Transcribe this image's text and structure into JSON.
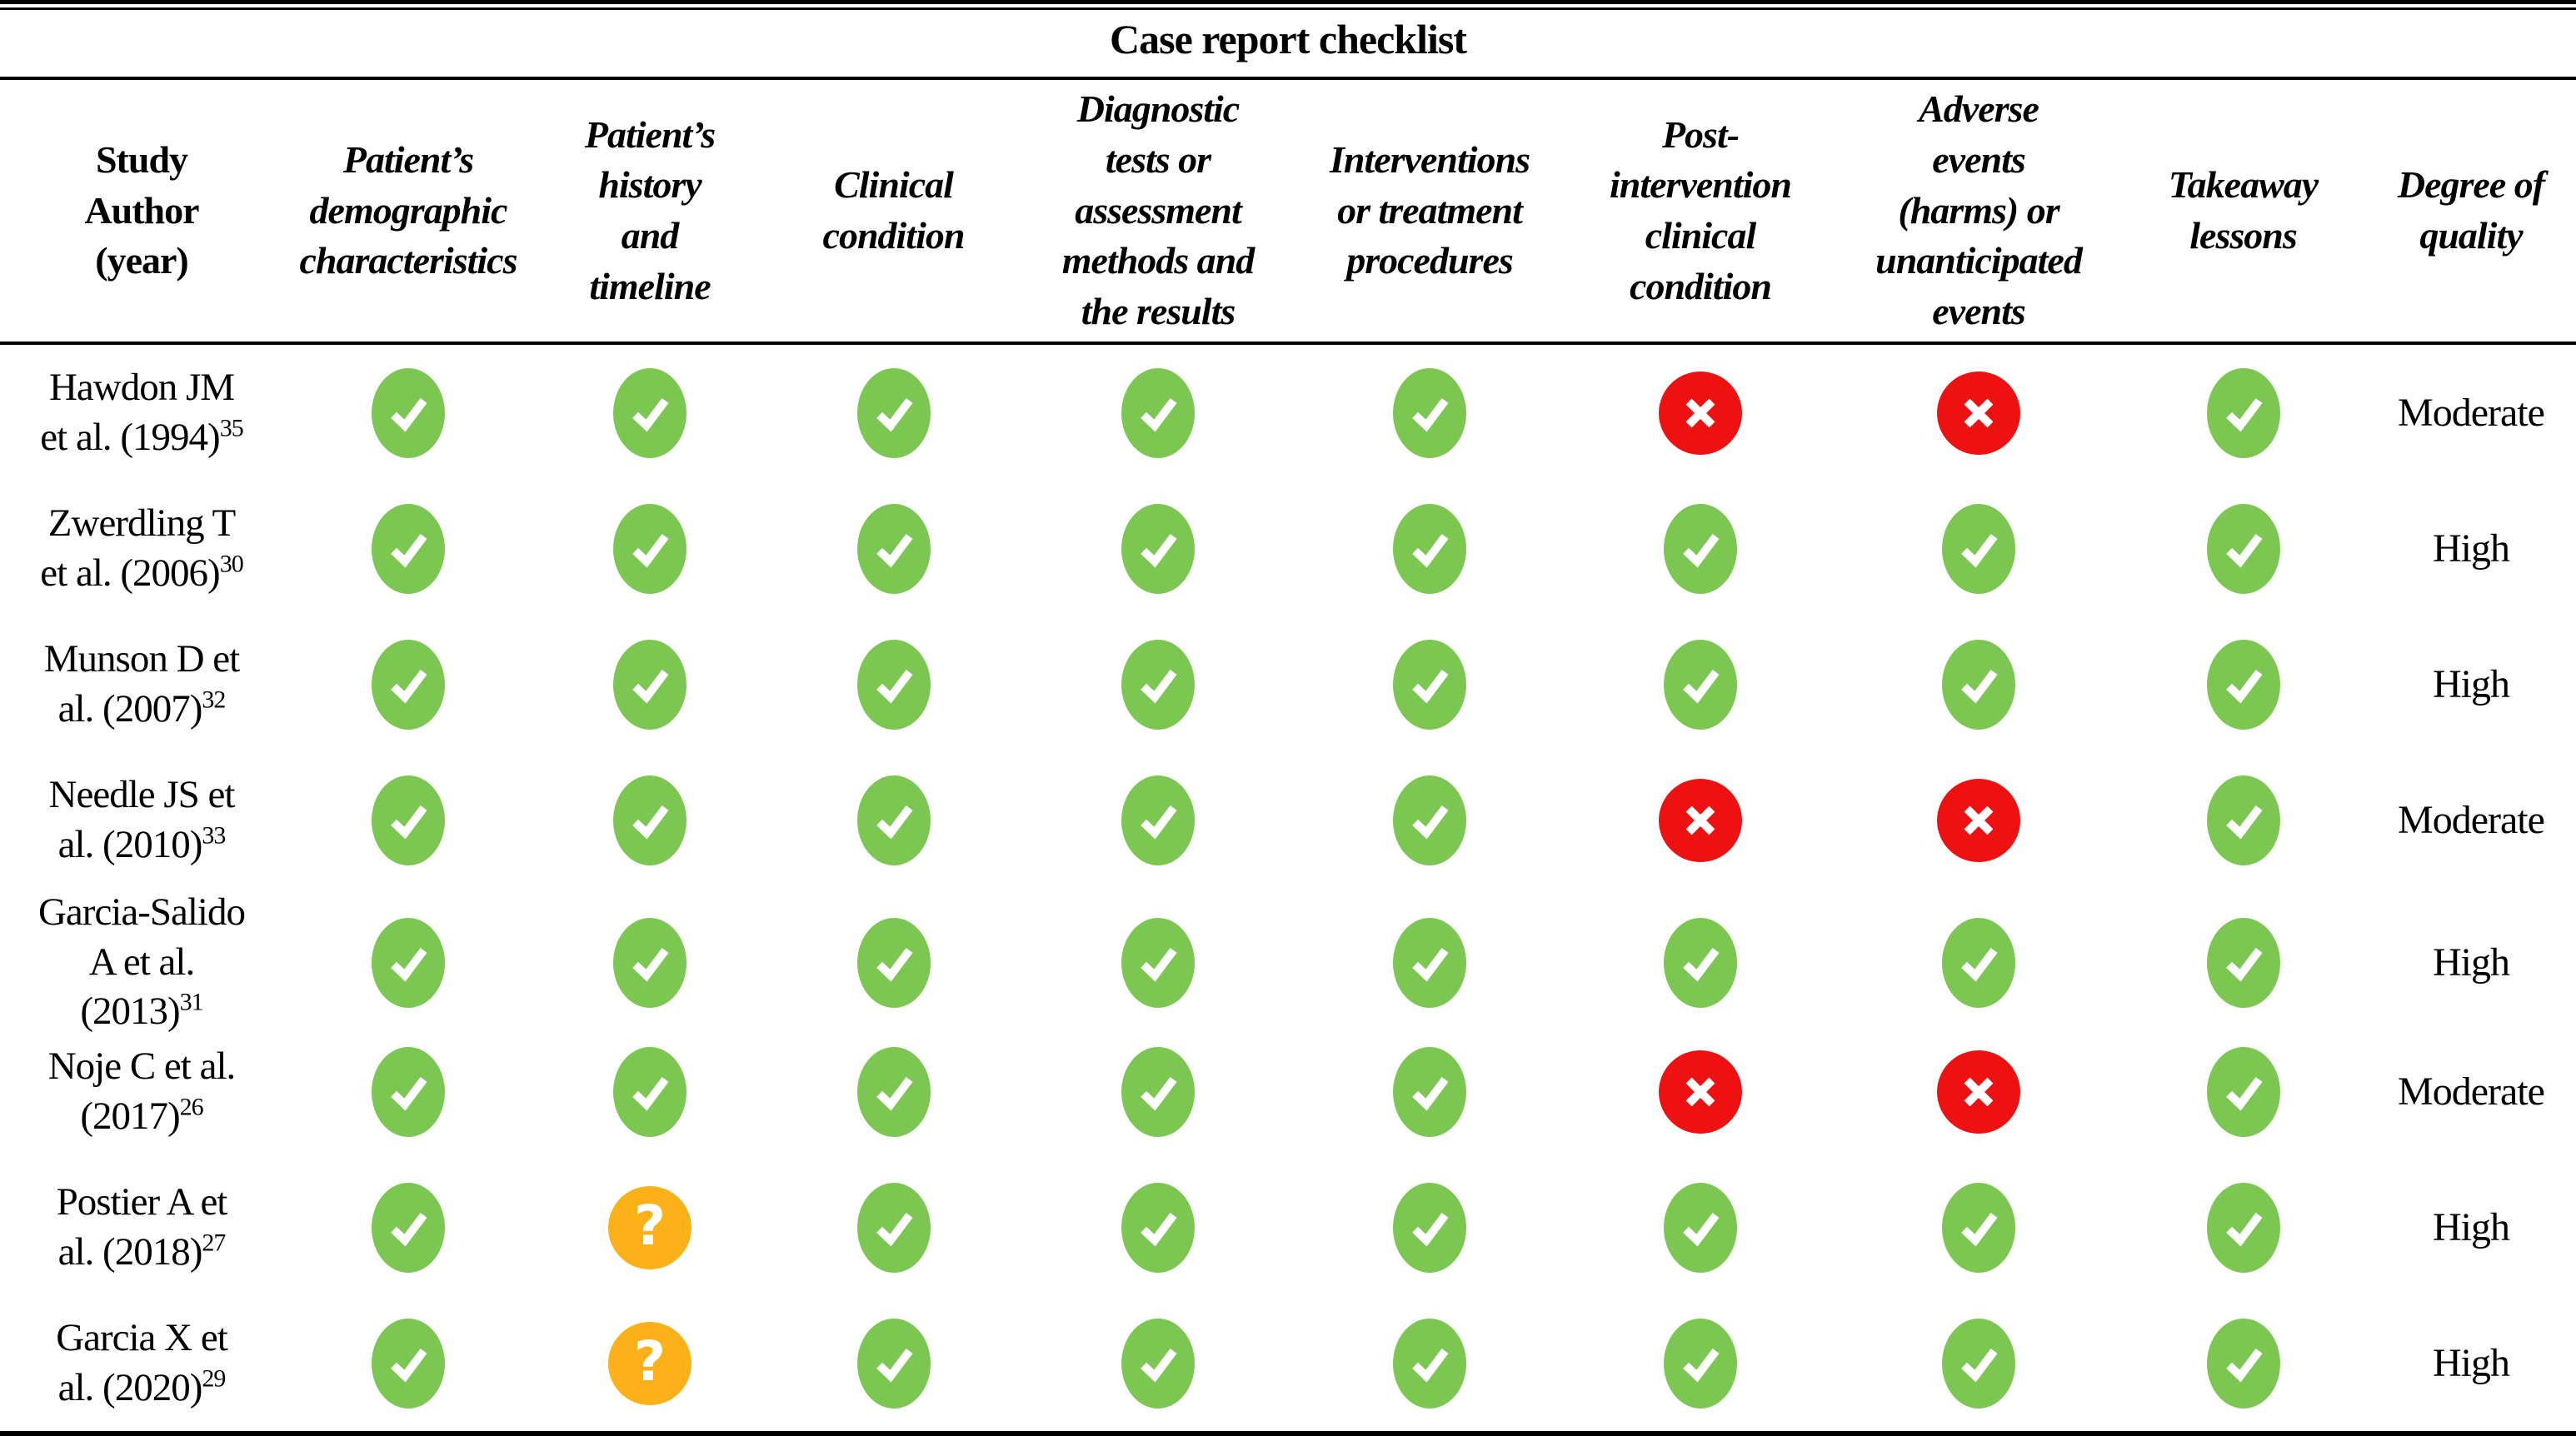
{
  "title": "Case report checklist",
  "colors": {
    "check_bg": "#7CC752",
    "cross_bg": "#ED1111",
    "question_bg": "#FBB117",
    "glyph": "#FFFFFF",
    "text": "#000000",
    "rule": "#000000"
  },
  "icons": {
    "check": "checkmark-icon",
    "cross": "x-mark-icon",
    "question": "question-mark-icon"
  },
  "columns": [
    {
      "id": "study-author",
      "label": "Study Author (year)",
      "lines": [
        "Study",
        "Author",
        "(year)"
      ],
      "italic": false
    },
    {
      "id": "demographic",
      "label": "Patient’s demographic characteristics",
      "lines": [
        "Patient’s",
        "demographic",
        "characteristics"
      ],
      "italic": true
    },
    {
      "id": "history-timeline",
      "label": "Patient’s history and timeline",
      "lines": [
        "Patient’s",
        "history",
        "and",
        "timeline"
      ],
      "italic": true
    },
    {
      "id": "clinical-condition",
      "label": "Clinical condition",
      "lines": [
        "Clinical",
        "condition"
      ],
      "italic": true
    },
    {
      "id": "diagnostic-tests",
      "label": "Diagnostic tests or assessment methods and the results",
      "lines": [
        "Diagnostic",
        "tests or",
        "assessment",
        "methods and",
        "the results"
      ],
      "italic": true
    },
    {
      "id": "interventions",
      "label": "Interventions or treatment procedures",
      "lines": [
        "Interventions",
        "or treatment",
        "procedures"
      ],
      "italic": true
    },
    {
      "id": "post-intervention",
      "label": "Post-intervention clinical condition",
      "lines": [
        "Post-",
        "intervention",
        "clinical",
        "condition"
      ],
      "italic": true
    },
    {
      "id": "adverse-events",
      "label": "Adverse events (harms) or unanticipated events",
      "lines": [
        "Adverse",
        "events",
        "(harms) or",
        "unanticipated",
        "events"
      ],
      "italic": true
    },
    {
      "id": "takeaway-lessons",
      "label": "Takeaway lessons",
      "lines": [
        "Takeaway",
        "lessons"
      ],
      "italic": true
    },
    {
      "id": "degree-of-quality",
      "label": "Degree of quality",
      "lines": [
        "Degree of",
        "quality"
      ],
      "italic": true
    }
  ],
  "rows": [
    {
      "author_lines": [
        "Hawdon JM",
        "et al. (1994)"
      ],
      "ref": "35",
      "marks": [
        "check",
        "check",
        "check",
        "check",
        "check",
        "cross",
        "cross",
        "check"
      ],
      "quality": "Moderate"
    },
    {
      "author_lines": [
        "Zwerdling T",
        "et al. (2006)"
      ],
      "ref": "30",
      "marks": [
        "check",
        "check",
        "check",
        "check",
        "check",
        "check",
        "check",
        "check"
      ],
      "quality": "High"
    },
    {
      "author_lines": [
        "Munson D et",
        "al. (2007)"
      ],
      "ref": "32",
      "marks": [
        "check",
        "check",
        "check",
        "check",
        "check",
        "check",
        "check",
        "check"
      ],
      "quality": "High"
    },
    {
      "author_lines": [
        "Needle JS et",
        "al. (2010)"
      ],
      "ref": "33",
      "marks": [
        "check",
        "check",
        "check",
        "check",
        "check",
        "cross",
        "cross",
        "check"
      ],
      "quality": "Moderate"
    },
    {
      "author_lines": [
        "Garcia-Salido",
        "A et al.",
        "(2013)"
      ],
      "ref": "31",
      "marks": [
        "check",
        "check",
        "check",
        "check",
        "check",
        "check",
        "check",
        "check"
      ],
      "quality": "High"
    },
    {
      "author_lines": [
        "Noje C et al.",
        "(2017)"
      ],
      "ref": "26",
      "marks": [
        "check",
        "check",
        "check",
        "check",
        "check",
        "cross",
        "cross",
        "check"
      ],
      "quality": "Moderate"
    },
    {
      "author_lines": [
        "Postier A et",
        "al. (2018)"
      ],
      "ref": "27",
      "marks": [
        "check",
        "question",
        "check",
        "check",
        "check",
        "check",
        "check",
        "check"
      ],
      "quality": "High"
    },
    {
      "author_lines": [
        "Garcia X et",
        "al. (2020)"
      ],
      "ref": "29",
      "marks": [
        "check",
        "question",
        "check",
        "check",
        "check",
        "check",
        "check",
        "check"
      ],
      "quality": "High"
    }
  ]
}
